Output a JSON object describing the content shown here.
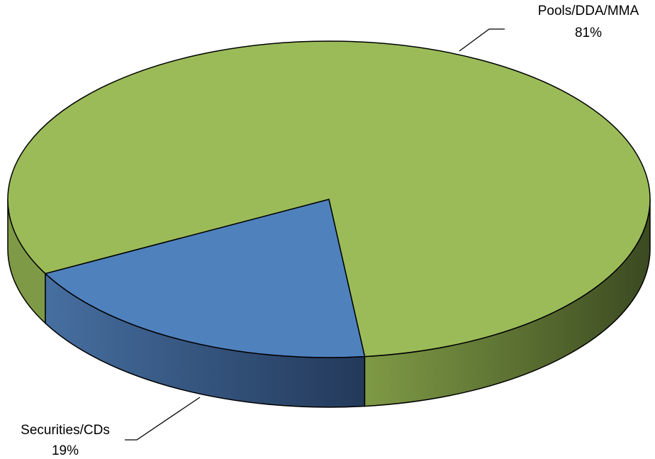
{
  "chart_data": {
    "type": "pie",
    "style": "3d",
    "title": "",
    "slices": [
      {
        "name": "Pools/DDA/MMA",
        "value": 81,
        "label": "81%",
        "color": "#9BBB59"
      },
      {
        "name": "Securities/CDs",
        "value": 19,
        "label": "19%",
        "color": "#4F81BD"
      }
    ],
    "legend": "none",
    "labels": "outside-with-leader-lines"
  }
}
